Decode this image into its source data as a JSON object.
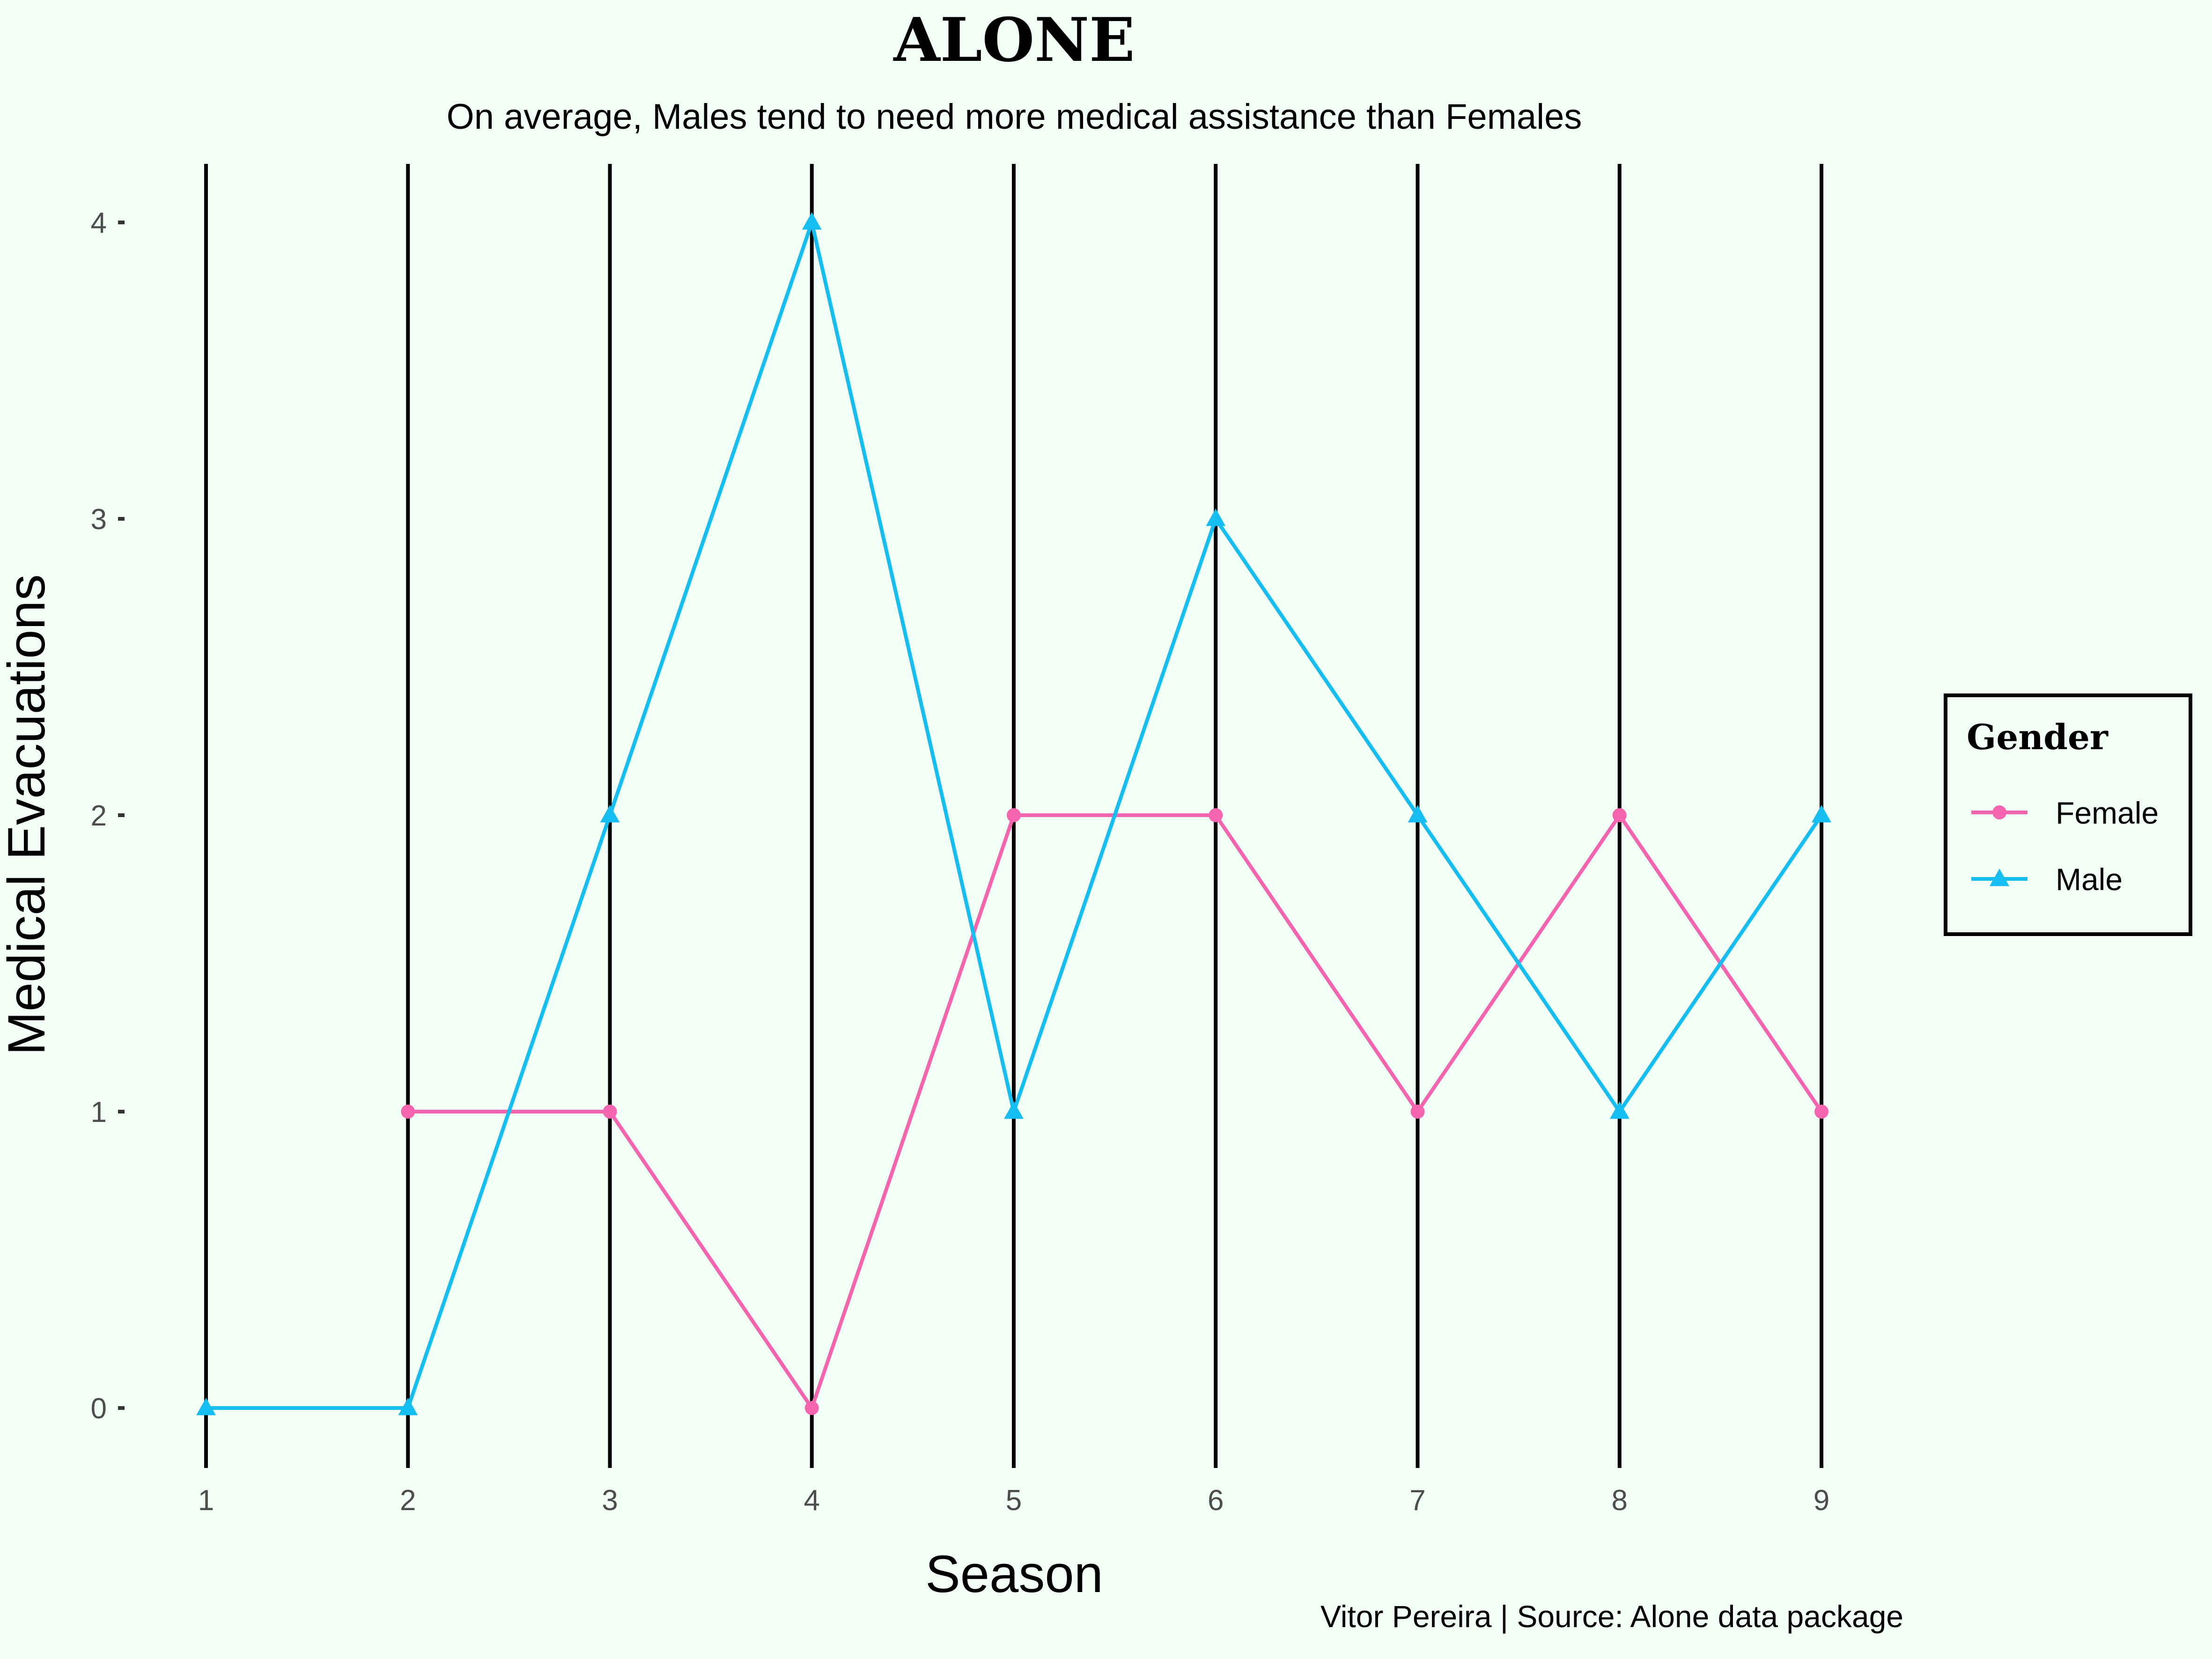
{
  "colors": {
    "background": "#F2FFF7",
    "female": "#F564AE",
    "male": "#15BDF0",
    "vline": "#000000",
    "text": "#000000",
    "tick_text": "#4D4D4D"
  },
  "chart_data": {
    "type": "line",
    "title": "ALONE",
    "subtitle": "On average, Males tend to need more medical assistance than Females",
    "caption": "Vitor Pereira | Source: Alone data package",
    "xlabel": "Season",
    "ylabel": "Medical Evacuations",
    "x": [
      1,
      2,
      3,
      4,
      5,
      6,
      7,
      8,
      9
    ],
    "xlim": [
      1,
      9
    ],
    "ylim": [
      0,
      4
    ],
    "yticks": [
      0,
      1,
      2,
      3,
      4
    ],
    "xticks": [
      1,
      2,
      3,
      4,
      5,
      6,
      7,
      8,
      9
    ],
    "grid": "vertical black lines at each season",
    "legend": {
      "title": "Gender",
      "position": "right"
    },
    "series": [
      {
        "name": "Female",
        "marker": "circle",
        "color": "#F564AE",
        "values": [
          null,
          1,
          1,
          0,
          2,
          2,
          1,
          2,
          1
        ]
      },
      {
        "name": "Male",
        "marker": "triangle",
        "color": "#15BDF0",
        "values": [
          0,
          0,
          2,
          4,
          1,
          3,
          2,
          1,
          2
        ]
      }
    ]
  }
}
